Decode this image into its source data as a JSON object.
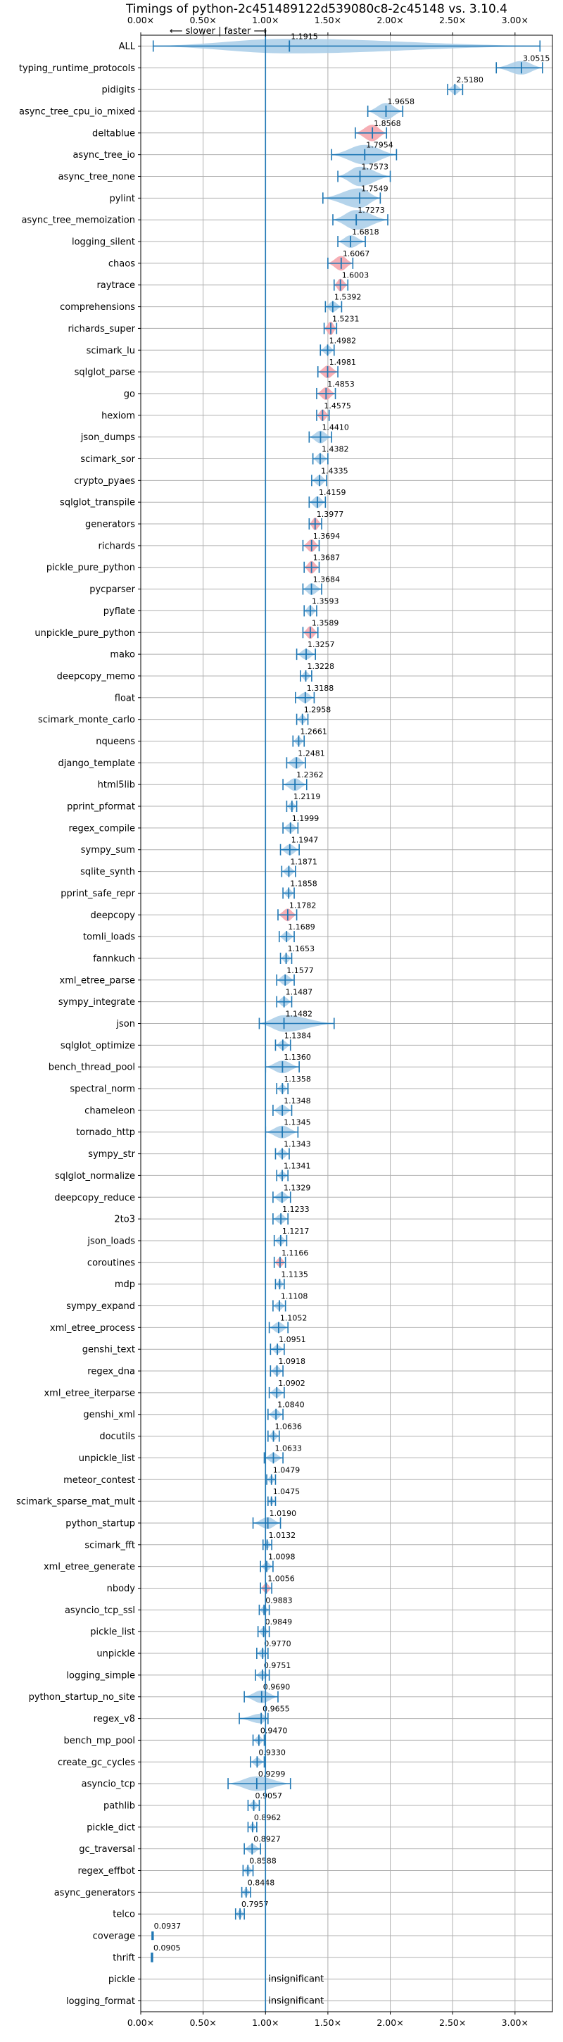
{
  "chart_data": {
    "type": "violin",
    "title": "Timings of python-2c451489122d539080c8-2c45148 vs. 3.10.4",
    "direction_label": "⟵ slower | faster ⟶",
    "xlim": [
      0,
      3.3
    ],
    "xticks": [
      0,
      0.5,
      1.0,
      1.5,
      2.0,
      2.5,
      3.0
    ],
    "xtick_labels": [
      "0.00×",
      "0.50×",
      "1.00×",
      "1.50×",
      "2.00×",
      "2.50×",
      "3.00×"
    ],
    "grid": true,
    "colors": {
      "violin": "#a8cce8",
      "line": "#1f77b4",
      "highlight": "#f4a0a8"
    },
    "benchmarks": [
      {
        "name": "ALL",
        "value": 1.1915,
        "label": "1.1915",
        "min": 0.1,
        "max": 3.2,
        "spread": 0.12,
        "highlight": false
      },
      {
        "name": "typing_runtime_protocols",
        "value": 3.0515,
        "label": "3.0515",
        "min": 2.85,
        "max": 3.22,
        "spread": 0.11,
        "highlight": false
      },
      {
        "name": "pidigits",
        "value": 2.518,
        "label": "2.5180",
        "min": 2.46,
        "max": 2.58,
        "spread": 0.07,
        "highlight": false
      },
      {
        "name": "async_tree_cpu_io_mixed",
        "value": 1.9658,
        "label": "1.9658",
        "min": 1.82,
        "max": 2.1,
        "spread": 0.14,
        "highlight": false
      },
      {
        "name": "deltablue",
        "value": 1.8568,
        "label": "1.8568",
        "min": 1.72,
        "max": 1.97,
        "spread": 0.14,
        "highlight": true
      },
      {
        "name": "async_tree_io",
        "value": 1.7954,
        "label": "1.7954",
        "min": 1.53,
        "max": 2.05,
        "spread": 0.2,
        "highlight": false
      },
      {
        "name": "async_tree_none",
        "value": 1.7573,
        "label": "1.7573",
        "min": 1.58,
        "max": 2.0,
        "spread": 0.17,
        "highlight": false
      },
      {
        "name": "pylint",
        "value": 1.7549,
        "label": "1.7549",
        "min": 1.46,
        "max": 1.92,
        "spread": 0.18,
        "highlight": false
      },
      {
        "name": "async_tree_memoization",
        "value": 1.7273,
        "label": "1.7273",
        "min": 1.54,
        "max": 1.98,
        "spread": 0.18,
        "highlight": false
      },
      {
        "name": "logging_silent",
        "value": 1.6818,
        "label": "1.6818",
        "min": 1.58,
        "max": 1.8,
        "spread": 0.1,
        "highlight": false
      },
      {
        "name": "chaos",
        "value": 1.6067,
        "label": "1.6067",
        "min": 1.5,
        "max": 1.7,
        "spread": 0.12,
        "highlight": true
      },
      {
        "name": "raytrace",
        "value": 1.6003,
        "label": "1.6003",
        "min": 1.55,
        "max": 1.66,
        "spread": 0.1,
        "highlight": true
      },
      {
        "name": "comprehensions",
        "value": 1.5392,
        "label": "1.5392",
        "min": 1.48,
        "max": 1.61,
        "spread": 0.08,
        "highlight": false
      },
      {
        "name": "richards_super",
        "value": 1.5231,
        "label": "1.5231",
        "min": 1.47,
        "max": 1.57,
        "spread": 0.11,
        "highlight": true
      },
      {
        "name": "scimark_lu",
        "value": 1.4982,
        "label": "1.4982",
        "min": 1.44,
        "max": 1.55,
        "spread": 0.07,
        "highlight": false
      },
      {
        "name": "sqlglot_parse",
        "value": 1.4981,
        "label": "1.4981",
        "min": 1.42,
        "max": 1.58,
        "spread": 0.1,
        "highlight": true
      },
      {
        "name": "go",
        "value": 1.4853,
        "label": "1.4853",
        "min": 1.41,
        "max": 1.56,
        "spread": 0.1,
        "highlight": true
      },
      {
        "name": "hexiom",
        "value": 1.4575,
        "label": "1.4575",
        "min": 1.41,
        "max": 1.51,
        "spread": 0.09,
        "highlight": true
      },
      {
        "name": "json_dumps",
        "value": 1.441,
        "label": "1.4410",
        "min": 1.35,
        "max": 1.53,
        "spread": 0.1,
        "highlight": false
      },
      {
        "name": "scimark_sor",
        "value": 1.4382,
        "label": "1.4382",
        "min": 1.38,
        "max": 1.5,
        "spread": 0.08,
        "highlight": false
      },
      {
        "name": "crypto_pyaes",
        "value": 1.4335,
        "label": "1.4335",
        "min": 1.37,
        "max": 1.49,
        "spread": 0.08,
        "highlight": false
      },
      {
        "name": "sqlglot_transpile",
        "value": 1.4159,
        "label": "1.4159",
        "min": 1.35,
        "max": 1.48,
        "spread": 0.09,
        "highlight": false
      },
      {
        "name": "generators",
        "value": 1.3977,
        "label": "1.3977",
        "min": 1.35,
        "max": 1.45,
        "spread": 0.1,
        "highlight": true
      },
      {
        "name": "richards",
        "value": 1.3694,
        "label": "1.3694",
        "min": 1.3,
        "max": 1.43,
        "spread": 0.1,
        "highlight": true
      },
      {
        "name": "pickle_pure_python",
        "value": 1.3687,
        "label": "1.3687",
        "min": 1.31,
        "max": 1.43,
        "spread": 0.1,
        "highlight": true
      },
      {
        "name": "pycparser",
        "value": 1.3684,
        "label": "1.3684",
        "min": 1.3,
        "max": 1.45,
        "spread": 0.09,
        "highlight": false
      },
      {
        "name": "pyflate",
        "value": 1.3593,
        "label": "1.3593",
        "min": 1.31,
        "max": 1.41,
        "spread": 0.08,
        "highlight": false
      },
      {
        "name": "unpickle_pure_python",
        "value": 1.3589,
        "label": "1.3589",
        "min": 1.3,
        "max": 1.42,
        "spread": 0.1,
        "highlight": true
      },
      {
        "name": "mako",
        "value": 1.3257,
        "label": "1.3257",
        "min": 1.25,
        "max": 1.4,
        "spread": 0.08,
        "highlight": false
      },
      {
        "name": "deepcopy_memo",
        "value": 1.3228,
        "label": "1.3228",
        "min": 1.28,
        "max": 1.37,
        "spread": 0.06,
        "highlight": false
      },
      {
        "name": "float",
        "value": 1.3188,
        "label": "1.3188",
        "min": 1.24,
        "max": 1.39,
        "spread": 0.08,
        "highlight": false
      },
      {
        "name": "scimark_monte_carlo",
        "value": 1.2958,
        "label": "1.2958",
        "min": 1.25,
        "max": 1.34,
        "spread": 0.06,
        "highlight": false
      },
      {
        "name": "nqueens",
        "value": 1.2661,
        "label": "1.2661",
        "min": 1.22,
        "max": 1.31,
        "spread": 0.06,
        "highlight": false
      },
      {
        "name": "django_template",
        "value": 1.2481,
        "label": "1.2481",
        "min": 1.17,
        "max": 1.32,
        "spread": 0.09,
        "highlight": false
      },
      {
        "name": "html5lib",
        "value": 1.2362,
        "label": "1.2362",
        "min": 1.14,
        "max": 1.33,
        "spread": 0.1,
        "highlight": false
      },
      {
        "name": "pprint_pformat",
        "value": 1.2119,
        "label": "1.2119",
        "min": 1.17,
        "max": 1.25,
        "spread": 0.06,
        "highlight": false
      },
      {
        "name": "regex_compile",
        "value": 1.1999,
        "label": "1.1999",
        "min": 1.14,
        "max": 1.26,
        "spread": 0.07,
        "highlight": false
      },
      {
        "name": "sympy_sum",
        "value": 1.1947,
        "label": "1.1947",
        "min": 1.12,
        "max": 1.27,
        "spread": 0.08,
        "highlight": false
      },
      {
        "name": "sqlite_synth",
        "value": 1.1871,
        "label": "1.1871",
        "min": 1.13,
        "max": 1.24,
        "spread": 0.07,
        "highlight": false
      },
      {
        "name": "pprint_safe_repr",
        "value": 1.1858,
        "label": "1.1858",
        "min": 1.14,
        "max": 1.23,
        "spread": 0.06,
        "highlight": false
      },
      {
        "name": "deepcopy",
        "value": 1.1782,
        "label": "1.1782",
        "min": 1.1,
        "max": 1.25,
        "spread": 0.1,
        "highlight": true
      },
      {
        "name": "tomli_loads",
        "value": 1.1689,
        "label": "1.1689",
        "min": 1.11,
        "max": 1.23,
        "spread": 0.07,
        "highlight": false
      },
      {
        "name": "fannkuch",
        "value": 1.1653,
        "label": "1.1653",
        "min": 1.12,
        "max": 1.21,
        "spread": 0.06,
        "highlight": false
      },
      {
        "name": "xml_etree_parse",
        "value": 1.1577,
        "label": "1.1577",
        "min": 1.09,
        "max": 1.23,
        "spread": 0.08,
        "highlight": false
      },
      {
        "name": "sympy_integrate",
        "value": 1.1487,
        "label": "1.1487",
        "min": 1.09,
        "max": 1.21,
        "spread": 0.07,
        "highlight": false
      },
      {
        "name": "json",
        "value": 1.1482,
        "label": "1.1482",
        "min": 0.95,
        "max": 1.55,
        "spread": 0.14,
        "highlight": false
      },
      {
        "name": "sqlglot_optimize",
        "value": 1.1384,
        "label": "1.1384",
        "min": 1.08,
        "max": 1.2,
        "spread": 0.07,
        "highlight": false
      },
      {
        "name": "bench_thread_pool",
        "value": 1.136,
        "label": "1.1360",
        "min": 1.0,
        "max": 1.27,
        "spread": 0.1,
        "highlight": false
      },
      {
        "name": "spectral_norm",
        "value": 1.1358,
        "label": "1.1358",
        "min": 1.09,
        "max": 1.18,
        "spread": 0.06,
        "highlight": false
      },
      {
        "name": "chameleon",
        "value": 1.1348,
        "label": "1.1348",
        "min": 1.06,
        "max": 1.21,
        "spread": 0.08,
        "highlight": false
      },
      {
        "name": "tornado_http",
        "value": 1.1345,
        "label": "1.1345",
        "min": 1.0,
        "max": 1.26,
        "spread": 0.1,
        "highlight": false
      },
      {
        "name": "sympy_str",
        "value": 1.1343,
        "label": "1.1343",
        "min": 1.08,
        "max": 1.19,
        "spread": 0.07,
        "highlight": false
      },
      {
        "name": "sqlglot_normalize",
        "value": 1.1341,
        "label": "1.1341",
        "min": 1.09,
        "max": 1.18,
        "spread": 0.06,
        "highlight": false
      },
      {
        "name": "deepcopy_reduce",
        "value": 1.1329,
        "label": "1.1329",
        "min": 1.06,
        "max": 1.2,
        "spread": 0.08,
        "highlight": false
      },
      {
        "name": "2to3",
        "value": 1.1233,
        "label": "1.1233",
        "min": 1.06,
        "max": 1.18,
        "spread": 0.07,
        "highlight": false
      },
      {
        "name": "json_loads",
        "value": 1.1217,
        "label": "1.1217",
        "min": 1.07,
        "max": 1.17,
        "spread": 0.06,
        "highlight": false
      },
      {
        "name": "coroutines",
        "value": 1.1166,
        "label": "1.1166",
        "min": 1.07,
        "max": 1.16,
        "spread": 0.07,
        "highlight": true
      },
      {
        "name": "mdp",
        "value": 1.1135,
        "label": "1.1135",
        "min": 1.08,
        "max": 1.15,
        "spread": 0.05,
        "highlight": false
      },
      {
        "name": "sympy_expand",
        "value": 1.1108,
        "label": "1.1108",
        "min": 1.06,
        "max": 1.16,
        "spread": 0.06,
        "highlight": false
      },
      {
        "name": "xml_etree_process",
        "value": 1.1052,
        "label": "1.1052",
        "min": 1.03,
        "max": 1.18,
        "spread": 0.08,
        "highlight": false
      },
      {
        "name": "genshi_text",
        "value": 1.0951,
        "label": "1.0951",
        "min": 1.04,
        "max": 1.15,
        "spread": 0.06,
        "highlight": false
      },
      {
        "name": "regex_dna",
        "value": 1.0918,
        "label": "1.0918",
        "min": 1.04,
        "max": 1.14,
        "spread": 0.07,
        "highlight": false
      },
      {
        "name": "xml_etree_iterparse",
        "value": 1.0902,
        "label": "1.0902",
        "min": 1.03,
        "max": 1.15,
        "spread": 0.07,
        "highlight": false
      },
      {
        "name": "genshi_xml",
        "value": 1.084,
        "label": "1.0840",
        "min": 1.02,
        "max": 1.14,
        "spread": 0.07,
        "highlight": false
      },
      {
        "name": "docutils",
        "value": 1.0636,
        "label": "1.0636",
        "min": 1.02,
        "max": 1.11,
        "spread": 0.06,
        "highlight": false
      },
      {
        "name": "unpickle_list",
        "value": 1.0633,
        "label": "1.0633",
        "min": 0.99,
        "max": 1.14,
        "spread": 0.07,
        "highlight": false
      },
      {
        "name": "meteor_contest",
        "value": 1.0479,
        "label": "1.0479",
        "min": 1.01,
        "max": 1.08,
        "spread": 0.05,
        "highlight": false
      },
      {
        "name": "scimark_sparse_mat_mult",
        "value": 1.0475,
        "label": "1.0475",
        "min": 1.02,
        "max": 1.08,
        "spread": 0.04,
        "highlight": false
      },
      {
        "name": "python_startup",
        "value": 1.019,
        "label": "1.0190",
        "min": 0.9,
        "max": 1.12,
        "spread": 0.09,
        "highlight": false
      },
      {
        "name": "scimark_fft",
        "value": 1.0132,
        "label": "1.0132",
        "min": 0.98,
        "max": 1.05,
        "spread": 0.05,
        "highlight": false
      },
      {
        "name": "xml_etree_generate",
        "value": 1.0098,
        "label": "1.0098",
        "min": 0.96,
        "max": 1.06,
        "spread": 0.06,
        "highlight": false
      },
      {
        "name": "nbody",
        "value": 1.0056,
        "label": "1.0056",
        "min": 0.96,
        "max": 1.05,
        "spread": 0.07,
        "highlight": true
      },
      {
        "name": "asyncio_tcp_ssl",
        "value": 0.9883,
        "label": "0.9883",
        "min": 0.95,
        "max": 1.03,
        "spread": 0.05,
        "highlight": false
      },
      {
        "name": "pickle_list",
        "value": 0.9849,
        "label": "0.9849",
        "min": 0.94,
        "max": 1.03,
        "spread": 0.06,
        "highlight": false
      },
      {
        "name": "unpickle",
        "value": 0.977,
        "label": "0.9770",
        "min": 0.93,
        "max": 1.02,
        "spread": 0.06,
        "highlight": false
      },
      {
        "name": "logging_simple",
        "value": 0.9751,
        "label": "0.9751",
        "min": 0.92,
        "max": 1.03,
        "spread": 0.06,
        "highlight": false
      },
      {
        "name": "python_startup_no_site",
        "value": 0.969,
        "label": "0.9690",
        "min": 0.83,
        "max": 1.1,
        "spread": 0.1,
        "highlight": false
      },
      {
        "name": "regex_v8",
        "value": 0.9655,
        "label": "0.9655",
        "min": 0.79,
        "max": 1.02,
        "spread": 0.07,
        "highlight": false
      },
      {
        "name": "bench_mp_pool",
        "value": 0.947,
        "label": "0.9470",
        "min": 0.9,
        "max": 0.99,
        "spread": 0.06,
        "highlight": false
      },
      {
        "name": "create_gc_cycles",
        "value": 0.933,
        "label": "0.9330",
        "min": 0.88,
        "max": 0.99,
        "spread": 0.06,
        "highlight": false
      },
      {
        "name": "asyncio_tcp",
        "value": 0.9299,
        "label": "0.9299",
        "min": 0.7,
        "max": 1.2,
        "spread": 0.12,
        "highlight": false
      },
      {
        "name": "pathlib",
        "value": 0.9057,
        "label": "0.9057",
        "min": 0.86,
        "max": 0.95,
        "spread": 0.06,
        "highlight": false
      },
      {
        "name": "pickle_dict",
        "value": 0.8962,
        "label": "0.8962",
        "min": 0.86,
        "max": 0.93,
        "spread": 0.05,
        "highlight": false
      },
      {
        "name": "gc_traversal",
        "value": 0.8927,
        "label": "0.8927",
        "min": 0.83,
        "max": 0.96,
        "spread": 0.07,
        "highlight": false
      },
      {
        "name": "regex_effbot",
        "value": 0.8588,
        "label": "0.8588",
        "min": 0.82,
        "max": 0.9,
        "spread": 0.06,
        "highlight": false
      },
      {
        "name": "async_generators",
        "value": 0.8448,
        "label": "0.8448",
        "min": 0.81,
        "max": 0.88,
        "spread": 0.05,
        "highlight": false
      },
      {
        "name": "telco",
        "value": 0.7957,
        "label": "0.7957",
        "min": 0.76,
        "max": 0.83,
        "spread": 0.06,
        "highlight": false
      },
      {
        "name": "coverage",
        "value": 0.0937,
        "label": "0.0937",
        "min": 0.09,
        "max": 0.1,
        "spread": 0.03,
        "highlight": false
      },
      {
        "name": "thrift",
        "value": 0.0905,
        "label": "0.0905",
        "min": 0.085,
        "max": 0.095,
        "spread": 0.04,
        "highlight": false
      },
      {
        "name": "pickle",
        "value": null,
        "label": "insignificant",
        "highlight": false
      },
      {
        "name": "logging_format",
        "value": null,
        "label": "insignificant",
        "highlight": false
      }
    ]
  }
}
